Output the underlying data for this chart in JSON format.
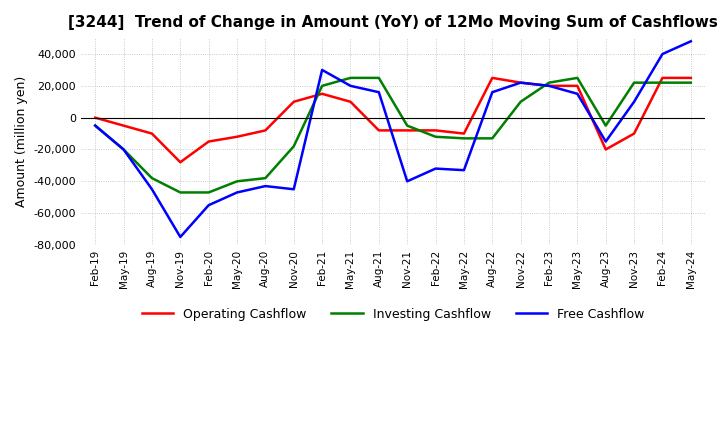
{
  "title": "[3244]  Trend of Change in Amount (YoY) of 12Mo Moving Sum of Cashflows",
  "ylabel": "Amount (million yen)",
  "ylim": [
    -80000,
    50000
  ],
  "yticks": [
    -80000,
    -60000,
    -40000,
    -20000,
    0,
    20000,
    40000
  ],
  "background_color": "#ffffff",
  "grid_color": "#bbbbbb",
  "grid_style": "dotted",
  "x_labels": [
    "Feb-19",
    "May-19",
    "Aug-19",
    "Nov-19",
    "Feb-20",
    "May-20",
    "Aug-20",
    "Nov-20",
    "Feb-21",
    "May-21",
    "Aug-21",
    "Nov-21",
    "Feb-22",
    "May-22",
    "Aug-22",
    "Nov-22",
    "Feb-23",
    "May-23",
    "Aug-23",
    "Nov-23",
    "Feb-24",
    "May-24"
  ],
  "operating": [
    0,
    -5000,
    -10000,
    -28000,
    -15000,
    -12000,
    -8000,
    10000,
    15000,
    10000,
    -8000,
    -8000,
    -8000,
    -10000,
    25000,
    22000,
    20000,
    20000,
    -20000,
    -10000,
    25000,
    25000
  ],
  "investing": [
    -5000,
    -20000,
    -38000,
    -47000,
    -47000,
    -40000,
    -38000,
    -18000,
    20000,
    25000,
    25000,
    -5000,
    -12000,
    -13000,
    -13000,
    10000,
    22000,
    25000,
    -5000,
    22000,
    22000,
    22000
  ],
  "free": [
    -5000,
    -20000,
    -45000,
    -75000,
    -55000,
    -47000,
    -43000,
    -45000,
    30000,
    20000,
    16000,
    -40000,
    -32000,
    -33000,
    16000,
    22000,
    20000,
    15000,
    -15000,
    10000,
    40000,
    48000
  ],
  "operating_color": "#ff0000",
  "investing_color": "#008000",
  "free_color": "#0000ff",
  "line_width": 1.8
}
